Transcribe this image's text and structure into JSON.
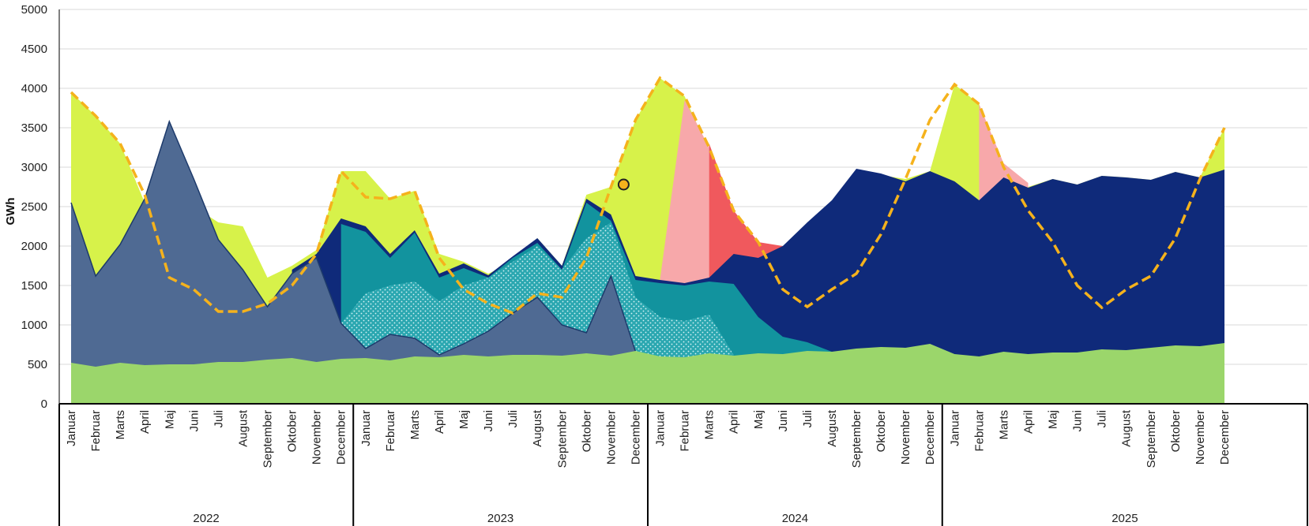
{
  "chart_data": {
    "type": "area",
    "ylabel": "GWh",
    "ylim": [
      0,
      5000
    ],
    "yticks": [
      0,
      500,
      1000,
      1500,
      2000,
      2500,
      3000,
      3500,
      4000,
      4500,
      5000
    ],
    "grid": true,
    "legend": "none",
    "months": [
      "Januar",
      "Februar",
      "Marts",
      "April",
      "Maj",
      "Juni",
      "Juli",
      "August",
      "September",
      "Oktober",
      "November",
      "December"
    ],
    "years": [
      "2022",
      "2023",
      "2024",
      "2025"
    ],
    "series": [
      {
        "key": "yellow_total",
        "color": "#d7f24a",
        "values": [
          3950,
          3650,
          3300,
          2550,
          2700,
          2500,
          2300,
          2250,
          1600,
          1750,
          1950,
          2950,
          2950,
          2600,
          2700,
          1900,
          1800,
          1650,
          1800,
          2100,
          1750,
          2650,
          2750,
          3600,
          4130,
          3900,
          3200,
          2450,
          2050,
          1550,
          1250,
          1600,
          2950,
          2900,
          2850,
          2950,
          4050,
          3800,
          3000,
          2750,
          2850,
          2780,
          2890,
          2870,
          2840,
          2940,
          2870,
          3500
        ]
      },
      {
        "key": "light_pink",
        "color": "#f7a8aa",
        "values": [
          null,
          null,
          null,
          null,
          null,
          null,
          null,
          null,
          null,
          null,
          null,
          null,
          null,
          null,
          null,
          null,
          null,
          null,
          null,
          null,
          null,
          null,
          null,
          null,
          1580,
          3850,
          3250,
          2450,
          null,
          null,
          null,
          null,
          null,
          null,
          null,
          null,
          null,
          3800,
          3050,
          2800,
          null,
          null,
          null,
          null,
          null,
          null,
          null,
          null
        ]
      },
      {
        "key": "red",
        "color": "#f0595d",
        "values": [
          null,
          null,
          null,
          null,
          null,
          null,
          null,
          null,
          null,
          null,
          null,
          null,
          null,
          null,
          null,
          null,
          null,
          null,
          null,
          null,
          null,
          null,
          null,
          null,
          null,
          null,
          3300,
          2450,
          2050,
          2000,
          null,
          null,
          null,
          null,
          null,
          null,
          null,
          null,
          null,
          null,
          null,
          null,
          null,
          null,
          null,
          null,
          null,
          null
        ]
      },
      {
        "key": "dark_navy",
        "color": "#0f2a7a",
        "values": [
          null,
          null,
          null,
          null,
          null,
          null,
          null,
          null,
          null,
          1700,
          1900,
          2350,
          2250,
          1900,
          2200,
          1650,
          1780,
          1630,
          1870,
          2100,
          1750,
          2600,
          2400,
          1620,
          1570,
          1530,
          1600,
          1900,
          1850,
          2000,
          2300,
          2580,
          2980,
          2920,
          2820,
          2950,
          2820,
          2580,
          2870,
          2740,
          2850,
          2780,
          2890,
          2870,
          2840,
          2940,
          2870,
          2970
        ]
      },
      {
        "key": "teal",
        "color": "#12939e",
        "values": [
          null,
          null,
          null,
          null,
          null,
          null,
          null,
          null,
          null,
          null,
          null,
          2280,
          2180,
          1850,
          2170,
          1600,
          1720,
          1600,
          1850,
          2040,
          1700,
          2550,
          2320,
          1570,
          1530,
          1500,
          1550,
          1520,
          1100,
          850,
          780,
          660,
          null,
          null,
          null,
          null,
          null,
          null,
          null,
          null,
          null,
          null,
          null,
          null,
          null,
          null,
          null,
          null
        ]
      },
      {
        "key": "teal_dotted",
        "color": "#2aa7b0",
        "values": [
          null,
          null,
          null,
          null,
          null,
          null,
          null,
          null,
          null,
          null,
          null,
          1020,
          1400,
          1500,
          1550,
          1300,
          1500,
          1600,
          1800,
          2000,
          1700,
          2100,
          2300,
          1350,
          1100,
          1050,
          1130,
          620,
          null,
          null,
          null,
          null,
          null,
          null,
          null,
          null,
          null,
          null,
          null,
          null,
          null,
          null,
          null,
          null,
          null,
          null,
          null,
          null
        ]
      },
      {
        "key": "slate_blue",
        "color": "#4f6a93",
        "values": [
          2550,
          1620,
          2020,
          2600,
          3580,
          2850,
          2080,
          1700,
          1230,
          1650,
          1850,
          1020,
          700,
          880,
          830,
          620,
          760,
          920,
          1150,
          1350,
          1000,
          900,
          1620,
          660,
          null,
          null,
          null,
          null,
          null,
          null,
          null,
          null,
          null,
          null,
          null,
          null,
          null,
          null,
          null,
          null,
          null,
          null,
          null,
          null,
          null,
          null,
          null,
          null
        ]
      },
      {
        "key": "green",
        "color": "#9bd66b",
        "values": [
          520,
          470,
          520,
          490,
          500,
          500,
          530,
          530,
          560,
          580,
          530,
          570,
          580,
          550,
          600,
          590,
          620,
          600,
          620,
          620,
          610,
          640,
          610,
          670,
          600,
          590,
          640,
          610,
          640,
          630,
          670,
          660,
          700,
          720,
          710,
          760,
          630,
          600,
          660,
          630,
          650,
          650,
          690,
          680,
          710,
          740,
          730,
          770
        ]
      }
    ],
    "dashed_line": {
      "color": "#f5b21c",
      "values": [
        3950,
        3650,
        3300,
        2650,
        1600,
        1450,
        1170,
        1170,
        1270,
        1500,
        1900,
        2950,
        2620,
        2600,
        2700,
        1850,
        1450,
        1270,
        1150,
        1400,
        1350,
        1850,
        2750,
        3600,
        4130,
        3900,
        3250,
        2450,
        2050,
        1450,
        1230,
        1450,
        1650,
        2150,
        2850,
        3600,
        4050,
        3800,
        3000,
        2450,
        2050,
        1500,
        1220,
        1450,
        1620,
        2100,
        2850,
        3500
      ]
    },
    "marker": {
      "month_index": 22,
      "value": 2780,
      "color": "#f5b21c"
    }
  }
}
